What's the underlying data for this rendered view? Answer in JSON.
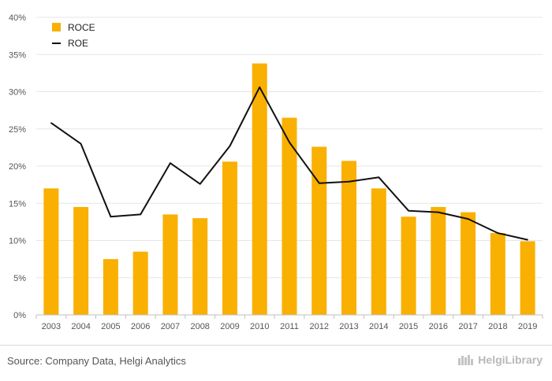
{
  "colors": {
    "bar": "#f9b000",
    "line": "#111111",
    "grid": "#e6e6e6",
    "axis_text": "#555555",
    "brand": "#b8b8b8"
  },
  "chart_data": {
    "type": "bar",
    "categories": [
      "2003",
      "2004",
      "2005",
      "2006",
      "2007",
      "2008",
      "2009",
      "2010",
      "2011",
      "2012",
      "2013",
      "2014",
      "2015",
      "2016",
      "2017",
      "2018",
      "2019"
    ],
    "series": [
      {
        "name": "ROCE",
        "type": "bar",
        "values": [
          17.0,
          14.5,
          7.5,
          8.5,
          13.5,
          13.0,
          20.6,
          33.8,
          26.5,
          22.6,
          20.7,
          17.0,
          13.2,
          14.5,
          13.8,
          11.0,
          9.9
        ]
      },
      {
        "name": "ROE",
        "type": "line",
        "values": [
          25.8,
          23.0,
          13.2,
          13.5,
          20.4,
          17.6,
          22.7,
          30.6,
          23.2,
          17.7,
          17.9,
          18.5,
          14.0,
          13.8,
          12.9,
          11.0,
          10.1
        ]
      }
    ],
    "yticks": [
      "0%",
      "5%",
      "10%",
      "15%",
      "20%",
      "25%",
      "30%",
      "35%",
      "40%"
    ],
    "ylim": [
      0,
      40
    ],
    "legend_position": "top-left",
    "grid": true
  },
  "footer": {
    "source": "Source: Company Data, Helgi Analytics",
    "brand": "HelgiLibrary"
  }
}
